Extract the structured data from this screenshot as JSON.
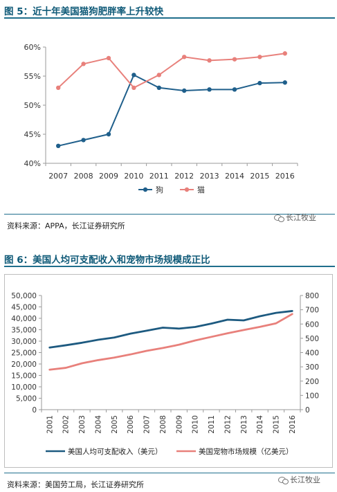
{
  "figure1": {
    "title": "图 5：近十年美国猫狗肥胖率上升较快"
  },
  "figure2": {
    "title": "图 6：美国人均可支配收入和宠物市场规模成正比"
  },
  "source1": "资料来源：APPA，长江证券研究所",
  "source2": "资料来源：美国劳工局，长江证券研究所",
  "watermark": "长江牧业",
  "colors": {
    "dog": "#1f5f8b",
    "cat": "#e8807b",
    "income": "#1d5a80",
    "pet": "#e8807b",
    "title": "#0f5a78"
  },
  "chart_data": [
    {
      "type": "line",
      "x": [
        "2007",
        "2008",
        "2009",
        "2010",
        "2011",
        "2012",
        "2013",
        "2014",
        "2015",
        "2016"
      ],
      "series": [
        {
          "name": "狗",
          "values": [
            43.0,
            44.0,
            45.0,
            55.2,
            53.0,
            52.5,
            52.7,
            52.7,
            53.8,
            53.9
          ]
        },
        {
          "name": "猫",
          "values": [
            53.0,
            57.1,
            58.1,
            53.0,
            55.2,
            58.3,
            57.7,
            57.9,
            58.3,
            58.9
          ]
        }
      ],
      "ylim": [
        40,
        60
      ],
      "yticks": [
        "40%",
        "45%",
        "50%",
        "55%",
        "60%"
      ],
      "grid": false,
      "legend": "bottom"
    },
    {
      "type": "line",
      "x": [
        "2001",
        "2002",
        "2003",
        "2004",
        "2005",
        "2006",
        "2007",
        "2008",
        "2009",
        "2010",
        "2011",
        "2012",
        "2013",
        "2014",
        "2015",
        "2016"
      ],
      "series": [
        {
          "name": "美国人均可支配收入（美元）",
          "axis": "left",
          "values": [
            27200,
            28200,
            29300,
            30600,
            31600,
            33300,
            34600,
            35900,
            35500,
            36200,
            37700,
            39400,
            39100,
            40900,
            42400,
            43200
          ]
        },
        {
          "name": "美国宠物市场规模（亿美元）",
          "axis": "right",
          "values": [
            280,
            293,
            325,
            347,
            365,
            387,
            412,
            432,
            455,
            485,
            510,
            535,
            558,
            580,
            605,
            670
          ]
        }
      ],
      "ylim_left": [
        0,
        50000
      ],
      "ylim_right": [
        0,
        800
      ],
      "yticks_left": [
        "0",
        "5,000",
        "10,000",
        "15,000",
        "20,000",
        "25,000",
        "30,000",
        "35,000",
        "40,000",
        "45,000",
        "50,000"
      ],
      "yticks_right": [
        "0",
        "100",
        "200",
        "300",
        "400",
        "500",
        "600",
        "700",
        "800"
      ],
      "grid": false,
      "legend": "bottom"
    }
  ]
}
